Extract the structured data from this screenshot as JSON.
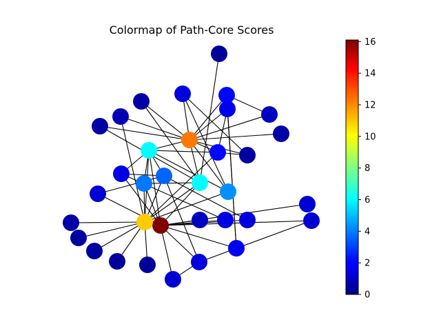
{
  "title": "Colormap of Path-Core Scores",
  "colorbar": {
    "min": 0,
    "max": 16.1,
    "ticks": [
      "0",
      "2",
      "4",
      "6",
      "8",
      "10",
      "12",
      "14",
      "16"
    ],
    "colormap": "jet"
  },
  "graph": {
    "nodes": [
      {
        "id": 0,
        "score": 16.1
      },
      {
        "id": 1,
        "score": 10.9
      },
      {
        "id": 2,
        "score": 12.2
      },
      {
        "id": 3,
        "score": 6.0
      },
      {
        "id": 4,
        "score": 6.0
      },
      {
        "id": 5,
        "score": 4.3
      },
      {
        "id": 6,
        "score": 3.9
      },
      {
        "id": 7,
        "score": 3.6
      },
      {
        "id": 8,
        "score": 2.1
      },
      {
        "id": 9,
        "score": 2.1
      },
      {
        "id": 10,
        "score": 1.5
      },
      {
        "id": 11,
        "score": 1.7
      },
      {
        "id": 12,
        "score": 1.6
      },
      {
        "id": 13,
        "score": 1.5
      },
      {
        "id": 14,
        "score": 1.8
      },
      {
        "id": 15,
        "score": 1.6
      },
      {
        "id": 16,
        "score": 1.5
      },
      {
        "id": 17,
        "score": 1.0
      },
      {
        "id": 18,
        "score": 1.3
      },
      {
        "id": 19,
        "score": 1.3
      },
      {
        "id": 20,
        "score": 1.3
      },
      {
        "id": 21,
        "score": 1.3
      },
      {
        "id": 22,
        "score": 1.0
      },
      {
        "id": 23,
        "score": 0.6
      },
      {
        "id": 24,
        "score": 0.5
      },
      {
        "id": 25,
        "score": 0.6
      },
      {
        "id": 26,
        "score": 0.8
      },
      {
        "id": 27,
        "score": 0.6
      },
      {
        "id": 28,
        "score": 0.6
      },
      {
        "id": 29,
        "score": 0.5
      },
      {
        "id": 30,
        "score": 0.5
      },
      {
        "id": 31,
        "score": 0.4
      },
      {
        "id": 32,
        "score": 0.4
      },
      {
        "id": 33,
        "score": 0.4
      }
    ],
    "edges": [
      [
        0,
        1
      ],
      [
        0,
        10
      ],
      [
        0,
        14
      ],
      [
        0,
        15
      ],
      [
        0,
        16
      ],
      [
        0,
        17
      ],
      [
        0,
        18
      ],
      [
        0,
        19
      ],
      [
        0,
        20
      ],
      [
        0,
        4
      ],
      [
        0,
        6
      ],
      [
        0,
        12
      ],
      [
        0,
        3
      ],
      [
        0,
        21
      ],
      [
        1,
        28
      ],
      [
        1,
        29
      ],
      [
        1,
        30
      ],
      [
        1,
        31
      ],
      [
        1,
        32
      ],
      [
        1,
        5
      ],
      [
        1,
        6
      ],
      [
        1,
        26
      ],
      [
        1,
        3
      ],
      [
        1,
        7
      ],
      [
        1,
        4
      ],
      [
        1,
        8
      ],
      [
        2,
        3
      ],
      [
        2,
        4
      ],
      [
        2,
        8
      ],
      [
        2,
        9
      ],
      [
        2,
        11
      ],
      [
        2,
        13
      ],
      [
        2,
        22
      ],
      [
        2,
        23
      ],
      [
        2,
        25
      ],
      [
        2,
        26
      ],
      [
        2,
        27
      ],
      [
        2,
        24
      ],
      [
        2,
        5
      ],
      [
        3,
        27
      ],
      [
        3,
        25
      ],
      [
        3,
        33
      ],
      [
        3,
        6
      ],
      [
        4,
        6
      ],
      [
        4,
        5
      ],
      [
        4,
        7
      ],
      [
        4,
        12
      ],
      [
        4,
        8
      ],
      [
        5,
        13
      ],
      [
        7,
        12
      ],
      [
        7,
        10
      ],
      [
        7,
        21
      ],
      [
        7,
        16
      ],
      [
        8,
        11
      ],
      [
        8,
        24
      ],
      [
        9,
        11
      ],
      [
        9,
        14
      ],
      [
        9,
        22
      ],
      [
        10,
        19
      ],
      [
        10,
        20
      ],
      [
        11,
        14
      ],
      [
        12,
        15
      ],
      [
        13,
        24
      ]
    ]
  }
}
